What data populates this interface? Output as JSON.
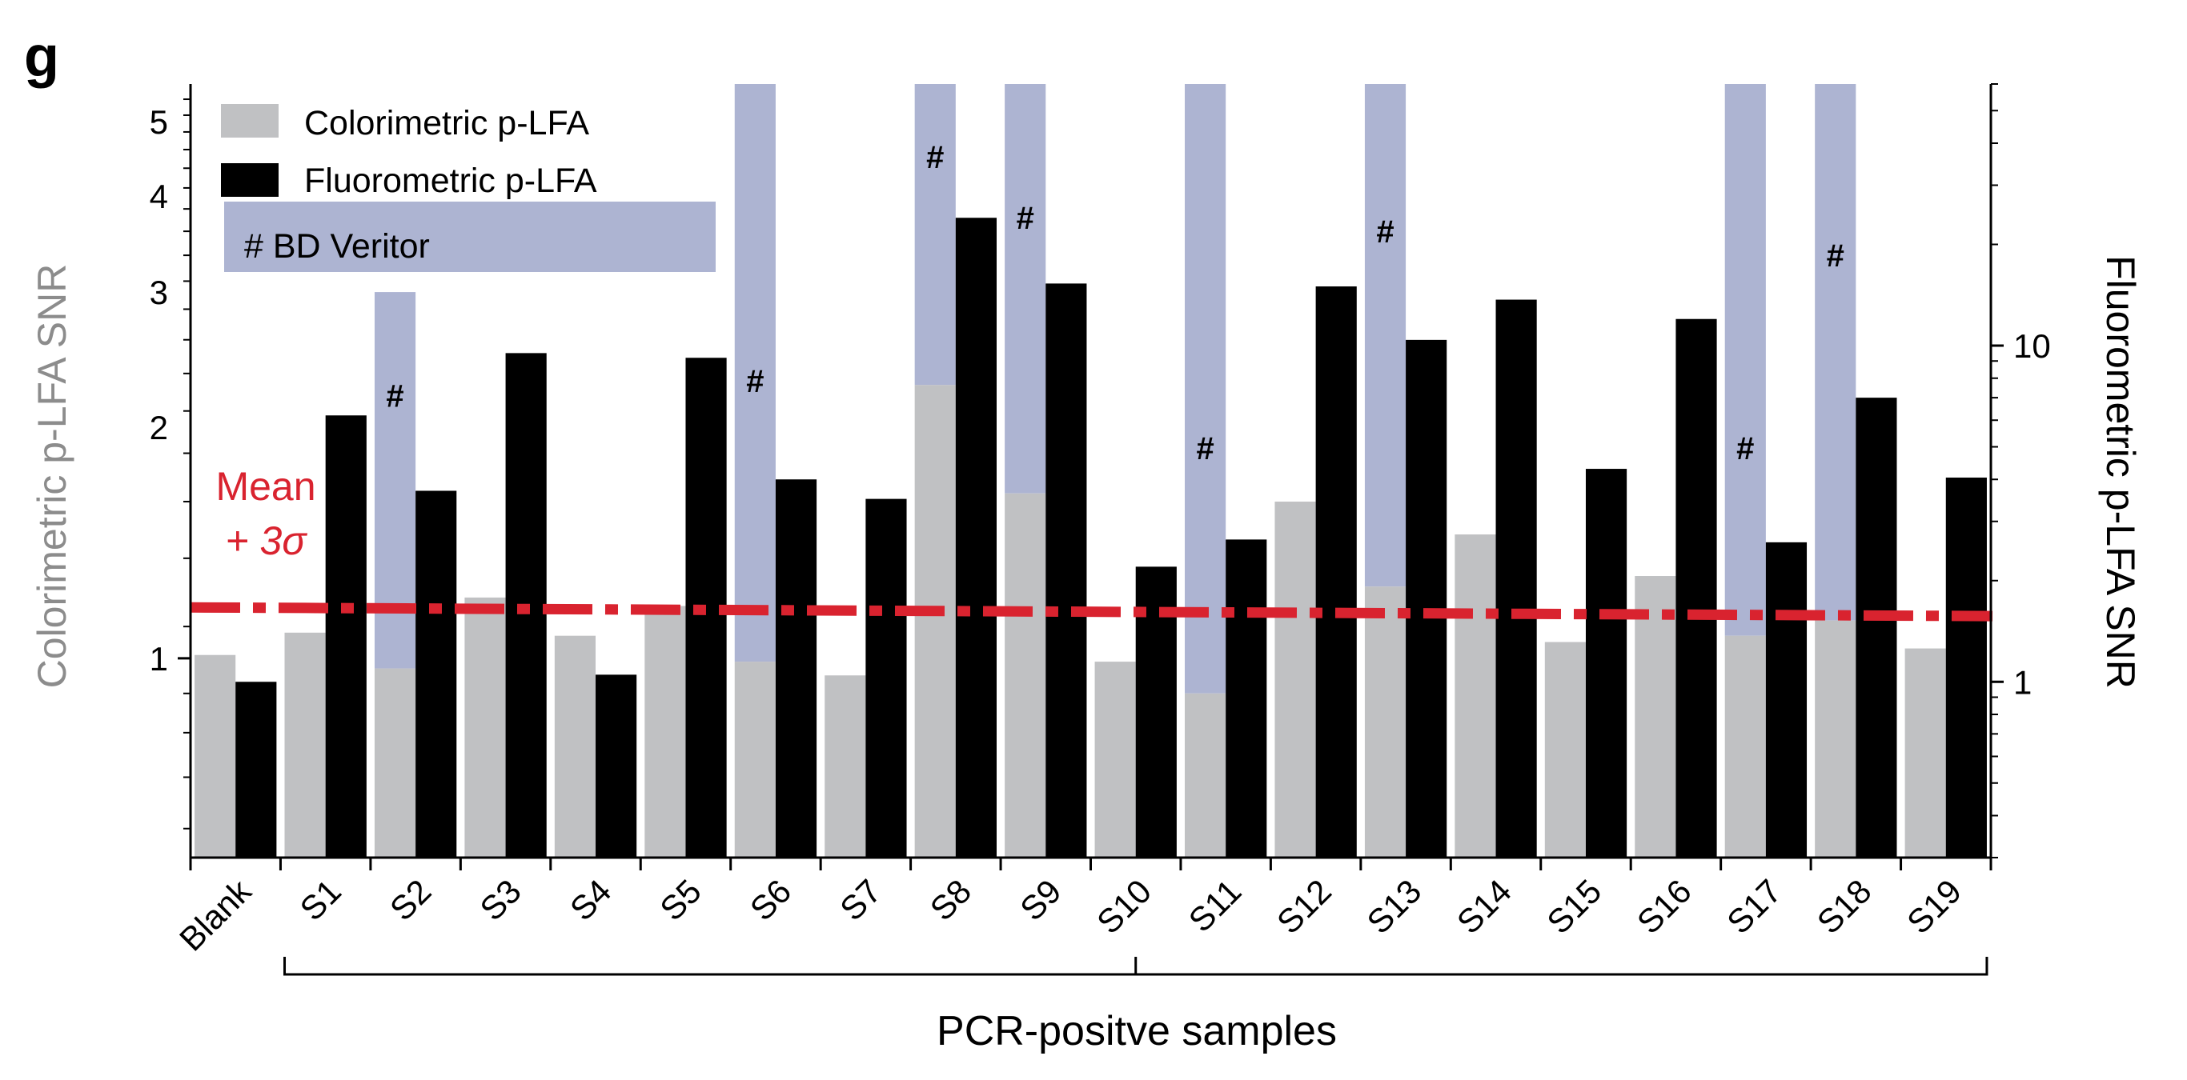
{
  "panel_label": "g",
  "colors": {
    "colorimetric": "#c0c1c3",
    "fluorometric": "#000000",
    "bd_veritor": "#adb4d2",
    "threshold": "#d9232f",
    "left_axis_text": "#8c8c8c",
    "axis": "#000000"
  },
  "chart_data": {
    "type": "bar",
    "ylabel": "Colorimetric p-LFA SNR",
    "y2label": "Fluorometric p-LFA SNR",
    "xlabel": "PCR-positve samples",
    "yscale": "log",
    "y2scale": "log",
    "ylim": [
      0.55,
      5.6
    ],
    "y2lim": [
      0.3,
      60
    ],
    "yticks": [
      1,
      2,
      3,
      4,
      5
    ],
    "y2ticks": [
      1,
      10
    ],
    "categories": [
      "Blank",
      "S1",
      "S2",
      "S3",
      "S4",
      "S5",
      "S6",
      "S7",
      "S8",
      "S9",
      "S10",
      "S11",
      "S12",
      "S13",
      "S14",
      "S15",
      "S16",
      "S17",
      "S18",
      "S19"
    ],
    "series": [
      {
        "name": "Colorimetric p-LFA",
        "axis": "left",
        "values": [
          1.01,
          1.08,
          0.97,
          1.2,
          1.07,
          1.17,
          0.99,
          0.95,
          2.27,
          1.64,
          0.99,
          0.9,
          1.6,
          1.24,
          1.45,
          1.05,
          1.28,
          1.07,
          1.12,
          1.03
        ]
      },
      {
        "name": "Fluorometric p-LFA",
        "axis": "right",
        "values": [
          1.0,
          6.2,
          3.7,
          9.5,
          1.05,
          9.2,
          4.0,
          3.5,
          24.0,
          15.3,
          2.2,
          2.65,
          15.0,
          10.4,
          13.7,
          4.3,
          12.0,
          2.6,
          7.0,
          4.05
        ]
      }
    ],
    "overlay": {
      "name": "BD Veritor",
      "marker": "#",
      "note": "bars span from the colorimetric bar top up to the value (colorimetric scale); 'top' marks a bar running past the axis top",
      "bars": [
        {
          "category": "S2",
          "value": 3.0,
          "marker_value": 2.2
        },
        {
          "category": "S6",
          "value": "top",
          "marker_value": 2.3
        },
        {
          "category": "S8",
          "value": "top",
          "marker_value": 4.5
        },
        {
          "category": "S9",
          "value": "top",
          "marker_value": 3.75
        },
        {
          "category": "S11",
          "value": "top",
          "marker_value": 1.88
        },
        {
          "category": "S13",
          "value": "top",
          "marker_value": 3.6
        },
        {
          "category": "S17",
          "value": "top",
          "marker_value": 1.88
        },
        {
          "category": "S18",
          "value": "top",
          "marker_value": 3.35
        }
      ]
    },
    "threshold": {
      "label_line1": "Mean",
      "label_line2": "+ 3σ",
      "value_start": 1.165,
      "value_end": 1.135,
      "style": "dash-dot"
    },
    "bracket": {
      "from": "S1",
      "to": "S19",
      "label": "PCR-positve samples"
    },
    "legend": {
      "position": "top-left",
      "entries": [
        "Colorimetric p-LFA",
        "Fluorometric p-LFA",
        "# BD Veritor"
      ]
    },
    "grid": false
  }
}
